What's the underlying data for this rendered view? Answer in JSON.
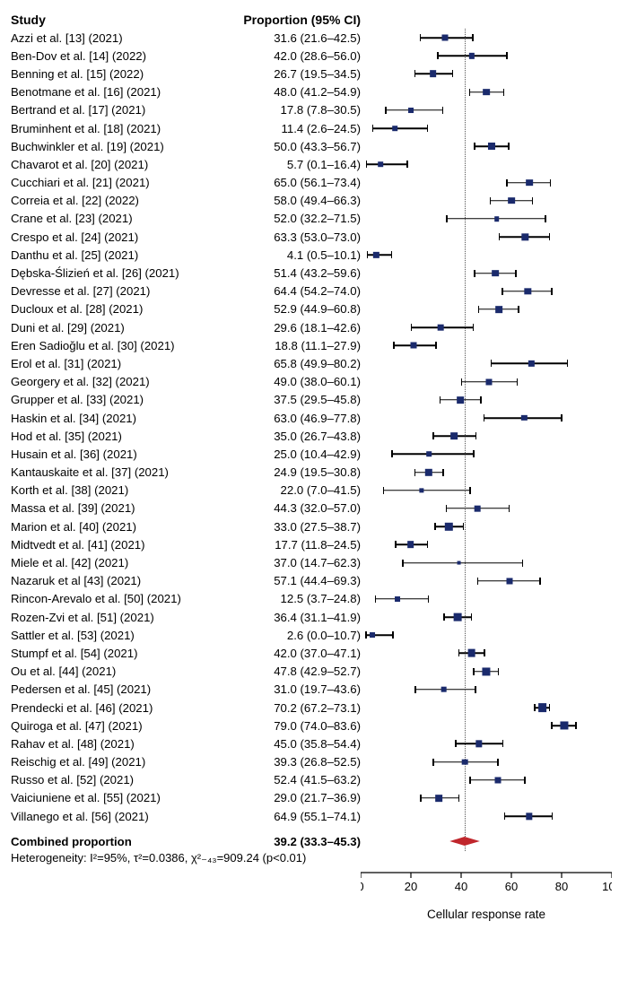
{
  "title_study": "Study",
  "title_prop": "Proportion (95% CI)",
  "x_axis_label": "Cellular response rate",
  "marker_color": "#1a2a6c",
  "diamond_color": "#c0262c",
  "line_color": "#000000",
  "grid_color": "#555555",
  "background": "#ffffff",
  "xlim": [
    0,
    100
  ],
  "xticks": [
    0,
    20,
    40,
    60,
    80,
    100
  ],
  "ref_line": 39.2,
  "square_base": 7,
  "combined": {
    "label": "Combined proportion",
    "text": "39.2 (33.3–45.3)",
    "est": 39.2,
    "lo": 33.3,
    "hi": 45.3
  },
  "heterogeneity": "Heterogeneity: I²=95%, τ²=0.0386, χ²₋₄₃=909.24 (p<0.01)",
  "studies": [
    {
      "label": "Azzi et al. [13] (2021)",
      "text": "31.6 (21.6–42.5)",
      "est": 31.6,
      "lo": 21.6,
      "hi": 42.5,
      "w": 1.0
    },
    {
      "label": "Ben-Dov et al. [14] (2022)",
      "text": "42.0 (28.6–56.0)",
      "est": 42.0,
      "lo": 28.6,
      "hi": 56.0,
      "w": 0.9
    },
    {
      "label": "Benning et al. [15] (2022)",
      "text": "26.7 (19.5–34.5)",
      "est": 26.7,
      "lo": 19.5,
      "hi": 34.5,
      "w": 1.1
    },
    {
      "label": "Benotmane et al. [16] (2021)",
      "text": "48.0 (41.2–54.9)",
      "est": 48.0,
      "lo": 41.2,
      "hi": 54.9,
      "w": 1.1
    },
    {
      "label": "Bertrand et al. [17] (2021)",
      "text": "17.8 (7.8–30.5)",
      "est": 17.8,
      "lo": 7.8,
      "hi": 30.5,
      "w": 0.85
    },
    {
      "label": "Bruminhent et al. [18] (2021)",
      "text": "11.4 (2.6–24.5)",
      "est": 11.4,
      "lo": 2.6,
      "hi": 24.5,
      "w": 0.8
    },
    {
      "label": "Buchwinkler et al. [19] (2021)",
      "text": "50.0 (43.3–56.7)",
      "est": 50.0,
      "lo": 43.3,
      "hi": 56.7,
      "w": 1.15
    },
    {
      "label": "Chavarot et al. [20] (2021)",
      "text": "5.7 (0.1–16.4)",
      "est": 5.7,
      "lo": 0.1,
      "hi": 16.4,
      "w": 0.8
    },
    {
      "label": "Cucchiari et al. [21] (2021)",
      "text": "65.0 (56.1–73.4)",
      "est": 65.0,
      "lo": 56.1,
      "hi": 73.4,
      "w": 1.1
    },
    {
      "label": "Correia et al. [22] (2022)",
      "text": "58.0 (49.4–66.3)",
      "est": 58.0,
      "lo": 49.4,
      "hi": 66.3,
      "w": 1.1
    },
    {
      "label": "Crane et al. [23] (2021)",
      "text": "52.0 (32.2–71.5)",
      "est": 52.0,
      "lo": 32.2,
      "hi": 71.5,
      "w": 0.8
    },
    {
      "label": "Crespo et al. [24] (2021)",
      "text": "63.3 (53.0–73.0)",
      "est": 63.3,
      "lo": 53.0,
      "hi": 73.0,
      "w": 1.05
    },
    {
      "label": "Danthu et al. [25] (2021)",
      "text": "4.1 (0.5–10.1)",
      "est": 4.1,
      "lo": 0.5,
      "hi": 10.1,
      "w": 0.9
    },
    {
      "label": "Dębska-Ślizień et al. [26] (2021)",
      "text": "51.4 (43.2–59.6)",
      "est": 51.4,
      "lo": 43.2,
      "hi": 59.6,
      "w": 1.1
    },
    {
      "label": "Devresse et al. [27] (2021)",
      "text": "64.4 (54.2–74.0)",
      "est": 64.4,
      "lo": 54.2,
      "hi": 74.0,
      "w": 1.05
    },
    {
      "label": "Ducloux et al. [28] (2021)",
      "text": "52.9 (44.9–60.8)",
      "est": 52.9,
      "lo": 44.9,
      "hi": 60.8,
      "w": 1.1
    },
    {
      "label": "Duni et al. [29] (2021)",
      "text": "29.6 (18.1–42.6)",
      "est": 29.6,
      "lo": 18.1,
      "hi": 42.6,
      "w": 0.95
    },
    {
      "label": "Eren Sadioğlu et al. [30] (2021)",
      "text": "18.8 (11.1–27.9)",
      "est": 18.8,
      "lo": 11.1,
      "hi": 27.9,
      "w": 1.0
    },
    {
      "label": "Erol et al. [31] (2021)",
      "text": "65.8 (49.9–80.2)",
      "est": 65.8,
      "lo": 49.9,
      "hi": 80.2,
      "w": 0.9
    },
    {
      "label": "Georgery et al. [32] (2021)",
      "text": "49.0 (38.0–60.1)",
      "est": 49.0,
      "lo": 38.0,
      "hi": 60.1,
      "w": 1.0
    },
    {
      "label": "Grupper et al. [33] (2021)",
      "text": "37.5 (29.5–45.8)",
      "est": 37.5,
      "lo": 29.5,
      "hi": 45.8,
      "w": 1.1
    },
    {
      "label": "Haskin et al. [34] (2021)",
      "text": "63.0 (46.9–77.8)",
      "est": 63.0,
      "lo": 46.9,
      "hi": 77.8,
      "w": 0.9
    },
    {
      "label": "Hod et al. [35] (2021)",
      "text": "35.0 (26.7–43.8)",
      "est": 35.0,
      "lo": 26.7,
      "hi": 43.8,
      "w": 1.1
    },
    {
      "label": "Husain et al. [36] (2021)",
      "text": "25.0 (10.4–42.9)",
      "est": 25.0,
      "lo": 10.4,
      "hi": 42.9,
      "w": 0.8
    },
    {
      "label": "Kantauskaite et al. [37] (2021)",
      "text": "24.9 (19.5–30.8)",
      "est": 24.9,
      "lo": 19.5,
      "hi": 30.8,
      "w": 1.2
    },
    {
      "label": "Korth et al. [38] (2021)",
      "text": "22.0 (7.0–41.5)",
      "est": 22.0,
      "lo": 7.0,
      "hi": 41.5,
      "w": 0.75
    },
    {
      "label": "Massa et al. [39] (2021)",
      "text": "44.3 (32.0–57.0)",
      "est": 44.3,
      "lo": 32.0,
      "hi": 57.0,
      "w": 0.95
    },
    {
      "label": "Marion et al. [40] (2021)",
      "text": "33.0 (27.5–38.7)",
      "est": 33.0,
      "lo": 27.5,
      "hi": 38.7,
      "w": 1.2
    },
    {
      "label": "Midtvedt et al. [41] (2021)",
      "text": "17.7 (11.8–24.5)",
      "est": 17.7,
      "lo": 11.8,
      "hi": 24.5,
      "w": 1.1
    },
    {
      "label": "Miele et al. [42] (2021)",
      "text": "37.0 (14.7–62.3)",
      "est": 37.0,
      "lo": 14.7,
      "hi": 62.3,
      "w": 0.7
    },
    {
      "label": "Nazaruk et al [43] (2021)",
      "text": "57.1 (44.4–69.3)",
      "est": 57.1,
      "lo": 44.4,
      "hi": 69.3,
      "w": 1.0
    },
    {
      "label": "Rincon-Arevalo et al. [50] (2021)",
      "text": "12.5 (3.7–24.8)",
      "est": 12.5,
      "lo": 3.7,
      "hi": 24.8,
      "w": 0.85
    },
    {
      "label": "Rozen-Zvi et al. [51] (2021)",
      "text": "36.4 (31.1–41.9)",
      "est": 36.4,
      "lo": 31.1,
      "hi": 41.9,
      "w": 1.25
    },
    {
      "label": "Sattler et al. [53] (2021)",
      "text": "2.6 (0.0–10.7)",
      "est": 2.6,
      "lo": 0.0,
      "hi": 10.7,
      "w": 0.85
    },
    {
      "label": "Stumpf et al. [54] (2021)",
      "text": "42.0 (37.0–47.1)",
      "est": 42.0,
      "lo": 37.0,
      "hi": 47.1,
      "w": 1.25
    },
    {
      "label": "Ou et al. [44] (2021)",
      "text": "47.8 (42.9–52.7)",
      "est": 47.8,
      "lo": 42.9,
      "hi": 52.7,
      "w": 1.3
    },
    {
      "label": "Pedersen et al. [45] (2021)",
      "text": "31.0 (19.7–43.6)",
      "est": 31.0,
      "lo": 19.7,
      "hi": 43.6,
      "w": 0.95
    },
    {
      "label": "Prendecki et al. [46] (2021)",
      "text": "70.2 (67.2–73.1)",
      "est": 70.2,
      "lo": 67.2,
      "hi": 73.1,
      "w": 1.4
    },
    {
      "label": "Quiroga et al. [47] (2021)",
      "text": "79.0 (74.0–83.6)",
      "est": 79.0,
      "lo": 74.0,
      "hi": 83.6,
      "w": 1.3
    },
    {
      "label": "Rahav et al. [48] (2021)",
      "text": "45.0 (35.8–54.4)",
      "est": 45.0,
      "lo": 35.8,
      "hi": 54.4,
      "w": 1.05
    },
    {
      "label": "Reischig et al. [49] (2021)",
      "text": "39.3 (26.8–52.5)",
      "est": 39.3,
      "lo": 26.8,
      "hi": 52.5,
      "w": 0.95
    },
    {
      "label": "Russo et al. [52] (2021)",
      "text": "52.4 (41.5–63.2)",
      "est": 52.4,
      "lo": 41.5,
      "hi": 63.2,
      "w": 1.0
    },
    {
      "label": "Vaiciuniene et al. [55] (2021)",
      "text": "29.0 (21.7–36.9)",
      "est": 29.0,
      "lo": 21.7,
      "hi": 36.9,
      "w": 1.1
    },
    {
      "label": "Villanego et al. [56] (2021)",
      "text": "64.9 (55.1–74.1)",
      "est": 64.9,
      "lo": 55.1,
      "hi": 74.1,
      "w": 1.05
    }
  ]
}
